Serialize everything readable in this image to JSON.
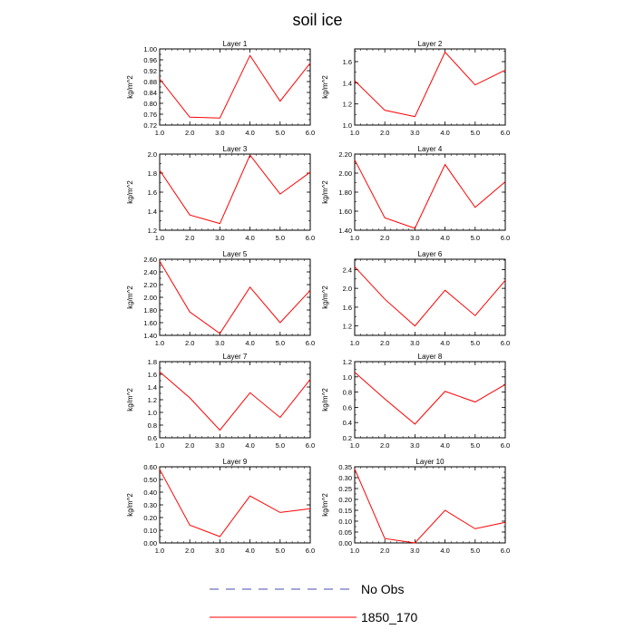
{
  "title": "soil ice",
  "legend": [
    {
      "label": "No Obs",
      "color": "#4b4bb4",
      "style": "dashed"
    },
    {
      "label": "1850_170",
      "color": "#ff0000",
      "style": "solid"
    }
  ],
  "chart_data": [
    {
      "type": "line",
      "title": "Layer 1",
      "ylabel": "kg/m^2",
      "x": [
        1.0,
        2.0,
        3.0,
        4.0,
        5.0,
        6.0
      ],
      "xlim": [
        1.0,
        6.0
      ],
      "ylim": [
        0.72,
        1.0
      ],
      "yticks": [
        0.72,
        0.76,
        0.8,
        0.84,
        0.88,
        0.92,
        0.96,
        1.0
      ],
      "ydec": 2,
      "series": [
        {
          "values": [
            0.89,
            0.749,
            0.746,
            0.976,
            0.808,
            0.948
          ],
          "color": "#ff0000"
        }
      ]
    },
    {
      "type": "line",
      "title": "Layer 2",
      "ylabel": "kg/m^2",
      "x": [
        1.0,
        2.0,
        3.0,
        4.0,
        5.0,
        6.0
      ],
      "xlim": [
        1.0,
        6.0
      ],
      "ylim": [
        1.0,
        1.72
      ],
      "yticks": [
        1.0,
        1.2,
        1.4,
        1.6
      ],
      "ydec": 1,
      "series": [
        {
          "values": [
            1.42,
            1.14,
            1.08,
            1.69,
            1.38,
            1.52
          ],
          "color": "#ff0000"
        }
      ]
    },
    {
      "type": "line",
      "title": "Layer 3",
      "ylabel": "kg/m^2",
      "x": [
        1.0,
        2.0,
        3.0,
        4.0,
        5.0,
        6.0
      ],
      "xlim": [
        1.0,
        6.0
      ],
      "ylim": [
        1.2,
        2.0
      ],
      "yticks": [
        1.2,
        1.4,
        1.6,
        1.8,
        2.0
      ],
      "ydec": 1,
      "series": [
        {
          "values": [
            1.83,
            1.36,
            1.27,
            1.99,
            1.58,
            1.81
          ],
          "color": "#ff0000"
        }
      ]
    },
    {
      "type": "line",
      "title": "Layer 4",
      "ylabel": "kg/m^2",
      "x": [
        1.0,
        2.0,
        3.0,
        4.0,
        5.0,
        6.0
      ],
      "xlim": [
        1.0,
        6.0
      ],
      "ylim": [
        1.4,
        2.2
      ],
      "yticks": [
        1.4,
        1.6,
        1.8,
        2.0,
        2.2
      ],
      "ydec": 2,
      "series": [
        {
          "values": [
            2.14,
            1.53,
            1.42,
            2.09,
            1.64,
            1.91
          ],
          "color": "#ff0000"
        }
      ]
    },
    {
      "type": "line",
      "title": "Layer 5",
      "ylabel": "kg/m^2",
      "x": [
        1.0,
        2.0,
        3.0,
        4.0,
        5.0,
        6.0
      ],
      "xlim": [
        1.0,
        6.0
      ],
      "ylim": [
        1.4,
        2.6
      ],
      "yticks": [
        1.4,
        1.6,
        1.8,
        2.0,
        2.2,
        2.4,
        2.6
      ],
      "ydec": 2,
      "series": [
        {
          "values": [
            2.57,
            1.77,
            1.43,
            2.16,
            1.6,
            2.11
          ],
          "color": "#ff0000"
        }
      ]
    },
    {
      "type": "line",
      "title": "Layer 6",
      "ylabel": "kg/m^2",
      "x": [
        1.0,
        2.0,
        3.0,
        4.0,
        5.0,
        6.0
      ],
      "xlim": [
        1.0,
        6.0
      ],
      "ylim": [
        1.0,
        2.62
      ],
      "yticks": [
        1.2,
        1.6,
        2.0,
        2.4
      ],
      "ydec": 1,
      "series": [
        {
          "values": [
            2.46,
            1.77,
            1.2,
            1.96,
            1.42,
            2.17
          ],
          "color": "#ff0000"
        }
      ]
    },
    {
      "type": "line",
      "title": "Layer 7",
      "ylabel": "kg/m^2",
      "x": [
        1.0,
        2.0,
        3.0,
        4.0,
        5.0,
        6.0
      ],
      "xlim": [
        1.0,
        6.0
      ],
      "ylim": [
        0.6,
        1.8
      ],
      "yticks": [
        0.6,
        0.8,
        1.0,
        1.2,
        1.4,
        1.6,
        1.8
      ],
      "ydec": 1,
      "series": [
        {
          "values": [
            1.64,
            1.23,
            0.72,
            1.31,
            0.92,
            1.52
          ],
          "color": "#ff0000"
        }
      ]
    },
    {
      "type": "line",
      "title": "Layer 8",
      "ylabel": "kg/m^2",
      "x": [
        1.0,
        2.0,
        3.0,
        4.0,
        5.0,
        6.0
      ],
      "xlim": [
        1.0,
        6.0
      ],
      "ylim": [
        0.2,
        1.2
      ],
      "yticks": [
        0.2,
        0.4,
        0.6,
        0.8,
        1.0,
        1.2
      ],
      "ydec": 1,
      "series": [
        {
          "values": [
            1.06,
            0.71,
            0.38,
            0.81,
            0.67,
            0.9
          ],
          "color": "#ff0000"
        }
      ]
    },
    {
      "type": "line",
      "title": "Layer 9",
      "ylabel": "kg/m^2",
      "x": [
        1.0,
        2.0,
        3.0,
        4.0,
        5.0,
        6.0
      ],
      "xlim": [
        1.0,
        6.0
      ],
      "ylim": [
        0.0,
        0.6
      ],
      "yticks": [
        0.0,
        0.1,
        0.2,
        0.3,
        0.4,
        0.5,
        0.6
      ],
      "ydec": 2,
      "series": [
        {
          "values": [
            0.58,
            0.14,
            0.05,
            0.37,
            0.24,
            0.27
          ],
          "color": "#ff0000"
        }
      ]
    },
    {
      "type": "line",
      "title": "Layer 10",
      "ylabel": "kg/m^2",
      "x": [
        1.0,
        2.0,
        3.0,
        4.0,
        5.0,
        6.0
      ],
      "xlim": [
        1.0,
        6.0
      ],
      "ylim": [
        0.0,
        0.35
      ],
      "yticks": [
        0.0,
        0.05,
        0.1,
        0.15,
        0.2,
        0.25,
        0.3,
        0.35
      ],
      "ydec": 2,
      "series": [
        {
          "values": [
            0.34,
            0.02,
            0.0,
            0.15,
            0.065,
            0.095
          ],
          "color": "#ff0000"
        }
      ]
    }
  ]
}
